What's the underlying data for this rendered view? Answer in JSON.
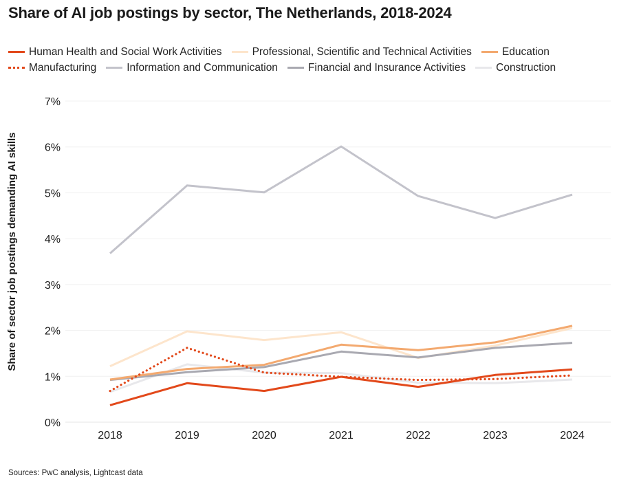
{
  "title": "Share of AI job postings by sector, The Netherlands, 2018-2024",
  "source": "Sources: PwC analysis, Lightcast data",
  "colors": {
    "health": "#e2491b",
    "professional": "#fde5cc",
    "education": "#f3a96f",
    "manufacturing": "#e2491b",
    "information": "#c3c3cb",
    "financial": "#a9a9b1",
    "construction": "#e8e8eb"
  },
  "chart_data": {
    "type": "line",
    "title": "Share of AI job postings by sector, The Netherlands, 2018-2024",
    "xlabel": "",
    "ylabel": "Share of sector job postings demanding AI skills",
    "x": [
      "2018",
      "2019",
      "2020",
      "2021",
      "2022",
      "2023",
      "2024"
    ],
    "ylim": [
      0,
      7
    ],
    "yticks": [
      "0%",
      "1%",
      "2%",
      "3%",
      "4%",
      "5%",
      "6%",
      "7%"
    ],
    "grid": true,
    "legend_position": "top",
    "series": [
      {
        "key": "health",
        "name": "Human Health and Social Work Activities",
        "style": "solid",
        "values": [
          0.37,
          0.85,
          0.68,
          0.99,
          0.77,
          1.03,
          1.15
        ]
      },
      {
        "key": "professional",
        "name": "Professional, Scientific and Technical Activities",
        "style": "solid",
        "values": [
          1.22,
          1.98,
          1.79,
          1.96,
          1.4,
          1.67,
          2.05
        ]
      },
      {
        "key": "education",
        "name": "Education",
        "style": "solid",
        "values": [
          0.93,
          1.16,
          1.25,
          1.69,
          1.57,
          1.74,
          2.1
        ]
      },
      {
        "key": "manufacturing",
        "name": "Manufacturing",
        "style": "dotted",
        "values": [
          0.68,
          1.62,
          1.08,
          0.99,
          0.92,
          0.94,
          1.02
        ]
      },
      {
        "key": "information",
        "name": "Information and Communication",
        "style": "solid",
        "values": [
          3.68,
          5.16,
          5.01,
          6.01,
          4.93,
          4.45,
          4.96
        ]
      },
      {
        "key": "financial",
        "name": "Financial and Insurance Activities",
        "style": "solid",
        "values": [
          0.92,
          1.09,
          1.2,
          1.54,
          1.41,
          1.62,
          1.73
        ]
      },
      {
        "key": "construction",
        "name": "Construction",
        "style": "solid",
        "values": [
          0.66,
          1.26,
          1.08,
          1.07,
          0.86,
          0.85,
          0.93
        ]
      }
    ]
  },
  "legend_rows": [
    [
      "health",
      "professional",
      "education"
    ],
    [
      "manufacturing",
      "information",
      "financial",
      "construction"
    ]
  ]
}
